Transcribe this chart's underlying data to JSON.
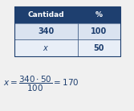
{
  "header_bg": "#1e3f6f",
  "header_text_color": "#ffffff",
  "row1_bg": "#dae3f0",
  "row2_bg": "#e8eef7",
  "col1_header": "Cantidad",
  "col2_header": "%",
  "row1_col1": "340",
  "row1_col2": "100",
  "row2_col1": "x",
  "row2_col2": "50",
  "text_color": "#1e3f6f",
  "bg_color": "#f0f0f0",
  "figsize": [
    1.67,
    1.38
  ],
  "dpi": 100
}
